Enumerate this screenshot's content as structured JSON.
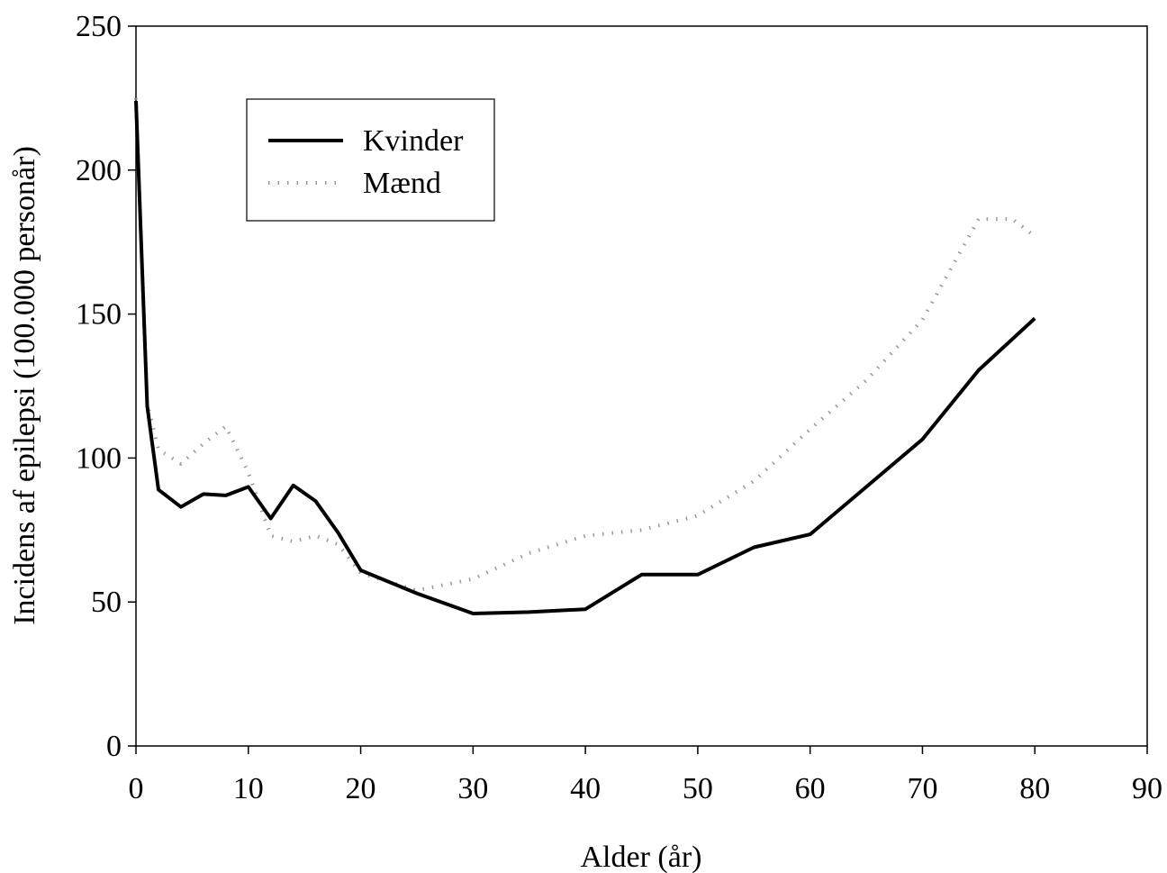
{
  "chart_data": {
    "type": "line",
    "title": "",
    "xlabel": "Alder (år)",
    "ylabel": "Incidens af epilepsi (100.000 personår)",
    "xlim": [
      0,
      90
    ],
    "ylim": [
      0,
      250
    ],
    "xticks": [
      0,
      10,
      20,
      30,
      40,
      50,
      60,
      70,
      80,
      90
    ],
    "yticks": [
      0,
      50,
      100,
      150,
      200,
      250
    ],
    "grid": false,
    "legend_position": "top-left",
    "series": [
      {
        "name": "Kvinder",
        "style": "solid",
        "color": "#000000",
        "x": [
          0,
          1,
          2,
          4,
          6,
          8,
          10,
          12,
          14,
          16,
          18,
          20,
          25,
          30,
          35,
          40,
          45,
          50,
          55,
          60,
          65,
          70,
          75,
          80
        ],
        "y": [
          224,
          118,
          89,
          83,
          87.5,
          87,
          90,
          79,
          90.5,
          85,
          74,
          61,
          53,
          46,
          46.5,
          47.5,
          59.5,
          59.5,
          69,
          73.5,
          90,
          106.5,
          130.5,
          148.5
        ]
      },
      {
        "name": "Mænd",
        "style": "dotted",
        "color": "#999999",
        "x": [
          0,
          1,
          2,
          4,
          6,
          8,
          10,
          12,
          14,
          16,
          18,
          20,
          25,
          30,
          35,
          40,
          45,
          50,
          55,
          60,
          65,
          70,
          75,
          78,
          80
        ],
        "y": [
          225,
          119,
          103,
          98,
          105,
          111,
          95,
          73,
          71,
          73,
          70,
          60,
          54,
          58,
          67,
          73,
          75,
          80,
          92,
          110,
          127,
          148,
          183,
          183,
          177
        ]
      }
    ]
  }
}
